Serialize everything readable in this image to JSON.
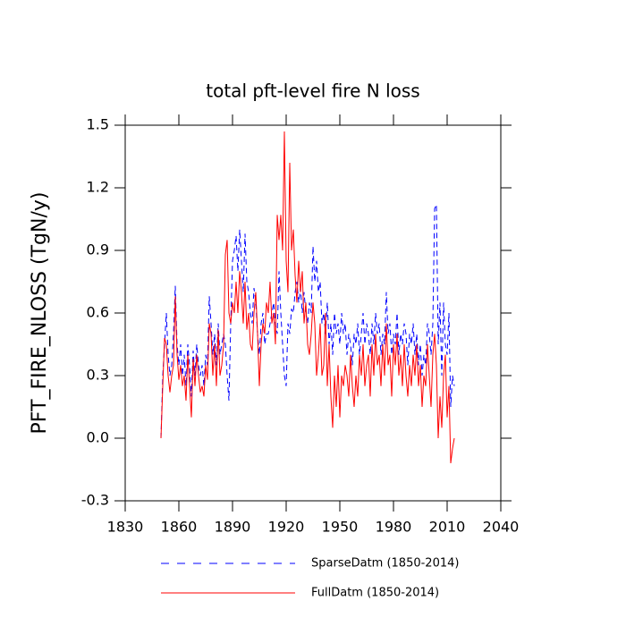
{
  "chart_data": {
    "type": "line",
    "title": "total pft-level fire N loss",
    "y_label": "PFT_FIRE_NLOSS  (TgN/y)",
    "xlim": [
      1830,
      2040
    ],
    "xticks": [
      1830,
      1860,
      1890,
      1920,
      1950,
      1980,
      2010,
      2040
    ],
    "ylim": [
      -0.3,
      1.5
    ],
    "yticks": [
      -0.3,
      {
        "value": 0,
        "label": "0.0"
      },
      0.3,
      0.6,
      0.9,
      1.2,
      1.5
    ],
    "x": [
      1850,
      1851,
      1852,
      1853,
      1854,
      1855,
      1856,
      1857,
      1858,
      1859,
      1860,
      1861,
      1862,
      1863,
      1864,
      1865,
      1866,
      1867,
      1868,
      1869,
      1870,
      1871,
      1872,
      1873,
      1874,
      1875,
      1876,
      1877,
      1878,
      1879,
      1880,
      1881,
      1882,
      1883,
      1884,
      1885,
      1886,
      1887,
      1888,
      1889,
      1890,
      1891,
      1892,
      1893,
      1894,
      1895,
      1896,
      1897,
      1898,
      1899,
      1900,
      1901,
      1902,
      1903,
      1904,
      1905,
      1906,
      1907,
      1908,
      1909,
      1910,
      1911,
      1912,
      1913,
      1914,
      1915,
      1916,
      1917,
      1918,
      1919,
      1920,
      1921,
      1922,
      1923,
      1924,
      1925,
      1926,
      1927,
      1928,
      1929,
      1930,
      1931,
      1932,
      1933,
      1934,
      1935,
      1936,
      1937,
      1938,
      1939,
      1940,
      1941,
      1942,
      1943,
      1944,
      1945,
      1946,
      1947,
      1948,
      1949,
      1950,
      1951,
      1952,
      1953,
      1954,
      1955,
      1956,
      1957,
      1958,
      1959,
      1960,
      1961,
      1962,
      1963,
      1964,
      1965,
      1966,
      1967,
      1968,
      1969,
      1970,
      1971,
      1972,
      1973,
      1974,
      1975,
      1976,
      1977,
      1978,
      1979,
      1980,
      1981,
      1982,
      1983,
      1984,
      1985,
      1986,
      1987,
      1988,
      1989,
      1990,
      1991,
      1992,
      1993,
      1994,
      1995,
      1996,
      1997,
      1998,
      1999,
      2000,
      2001,
      2002,
      2003,
      2004,
      2005,
      2006,
      2007,
      2008,
      2009,
      2010,
      2011,
      2012,
      2013,
      2014
    ],
    "series": [
      {
        "name": "SparseDatm (1850-2014)",
        "color": "#0000ff",
        "line_style": "dashed",
        "values": [
          0.0,
          0.3,
          0.45,
          0.6,
          0.4,
          0.3,
          0.35,
          0.5,
          0.73,
          0.45,
          0.35,
          0.45,
          0.3,
          0.4,
          0.25,
          0.45,
          0.35,
          0.2,
          0.42,
          0.3,
          0.45,
          0.35,
          0.3,
          0.35,
          0.25,
          0.4,
          0.35,
          0.68,
          0.55,
          0.4,
          0.5,
          0.35,
          0.55,
          0.4,
          0.45,
          0.5,
          0.45,
          0.3,
          0.18,
          0.55,
          0.85,
          0.9,
          0.97,
          0.8,
          1.0,
          0.85,
          0.7,
          0.98,
          0.75,
          0.7,
          0.6,
          0.55,
          0.72,
          0.65,
          0.5,
          0.4,
          0.55,
          0.6,
          0.45,
          0.5,
          0.5,
          0.55,
          0.6,
          0.65,
          0.55,
          0.5,
          0.8,
          0.6,
          0.45,
          0.3,
          0.25,
          0.55,
          0.5,
          0.62,
          0.6,
          0.7,
          0.75,
          0.65,
          0.72,
          0.6,
          0.7,
          0.6,
          0.55,
          0.65,
          0.6,
          0.92,
          0.75,
          0.85,
          0.7,
          0.75,
          0.55,
          0.6,
          0.5,
          0.65,
          0.45,
          0.55,
          0.4,
          0.6,
          0.5,
          0.55,
          0.45,
          0.6,
          0.5,
          0.55,
          0.4,
          0.5,
          0.45,
          0.35,
          0.5,
          0.45,
          0.55,
          0.4,
          0.5,
          0.6,
          0.45,
          0.55,
          0.5,
          0.4,
          0.55,
          0.45,
          0.6,
          0.5,
          0.55,
          0.4,
          0.5,
          0.45,
          0.7,
          0.5,
          0.55,
          0.4,
          0.5,
          0.45,
          0.6,
          0.4,
          0.5,
          0.45,
          0.55,
          0.5,
          0.35,
          0.5,
          0.45,
          0.55,
          0.4,
          0.5,
          0.35,
          0.45,
          0.3,
          0.4,
          0.35,
          0.55,
          0.5,
          0.4,
          0.55,
          1.1,
          1.12,
          0.45,
          0.65,
          0.3,
          0.65,
          0.45,
          0.4,
          0.6,
          0.15,
          0.3,
          0.25
        ]
      },
      {
        "name": "FullDatm (1850-2014)",
        "color": "#ff0000",
        "line_style": "solid",
        "values": [
          0.0,
          0.25,
          0.48,
          0.45,
          0.3,
          0.22,
          0.3,
          0.35,
          0.68,
          0.4,
          0.28,
          0.35,
          0.25,
          0.3,
          0.18,
          0.4,
          0.25,
          0.1,
          0.38,
          0.25,
          0.4,
          0.3,
          0.22,
          0.25,
          0.2,
          0.35,
          0.28,
          0.55,
          0.5,
          0.3,
          0.45,
          0.25,
          0.52,
          0.3,
          0.35,
          0.45,
          0.88,
          0.95,
          0.6,
          0.55,
          0.65,
          0.6,
          0.75,
          0.6,
          0.8,
          0.7,
          0.55,
          0.75,
          0.52,
          0.6,
          0.45,
          0.42,
          0.6,
          0.7,
          0.5,
          0.25,
          0.45,
          0.55,
          0.5,
          0.65,
          0.6,
          0.75,
          0.55,
          0.6,
          0.45,
          1.07,
          0.95,
          1.07,
          0.9,
          1.47,
          0.85,
          0.7,
          1.32,
          0.9,
          1.0,
          0.78,
          0.65,
          0.85,
          0.7,
          0.8,
          0.55,
          0.65,
          0.45,
          0.4,
          0.5,
          0.65,
          0.55,
          0.3,
          0.4,
          0.55,
          0.3,
          0.35,
          0.6,
          0.25,
          0.45,
          0.2,
          0.05,
          0.3,
          0.15,
          0.35,
          0.1,
          0.3,
          0.25,
          0.35,
          0.3,
          0.2,
          0.4,
          0.25,
          0.15,
          0.3,
          0.2,
          0.4,
          0.3,
          0.45,
          0.25,
          0.35,
          0.4,
          0.2,
          0.45,
          0.3,
          0.5,
          0.35,
          0.4,
          0.25,
          0.45,
          0.3,
          0.55,
          0.35,
          0.4,
          0.2,
          0.45,
          0.35,
          0.5,
          0.3,
          0.4,
          0.25,
          0.45,
          0.3,
          0.2,
          0.35,
          0.25,
          0.4,
          0.3,
          0.45,
          0.25,
          0.35,
          0.15,
          0.3,
          0.25,
          0.45,
          0.3,
          0.15,
          0.4,
          0.5,
          0.35,
          0.0,
          0.2,
          0.05,
          0.3,
          0.4,
          0.1,
          0.25,
          -0.12,
          -0.05,
          0.0
        ]
      }
    ]
  }
}
